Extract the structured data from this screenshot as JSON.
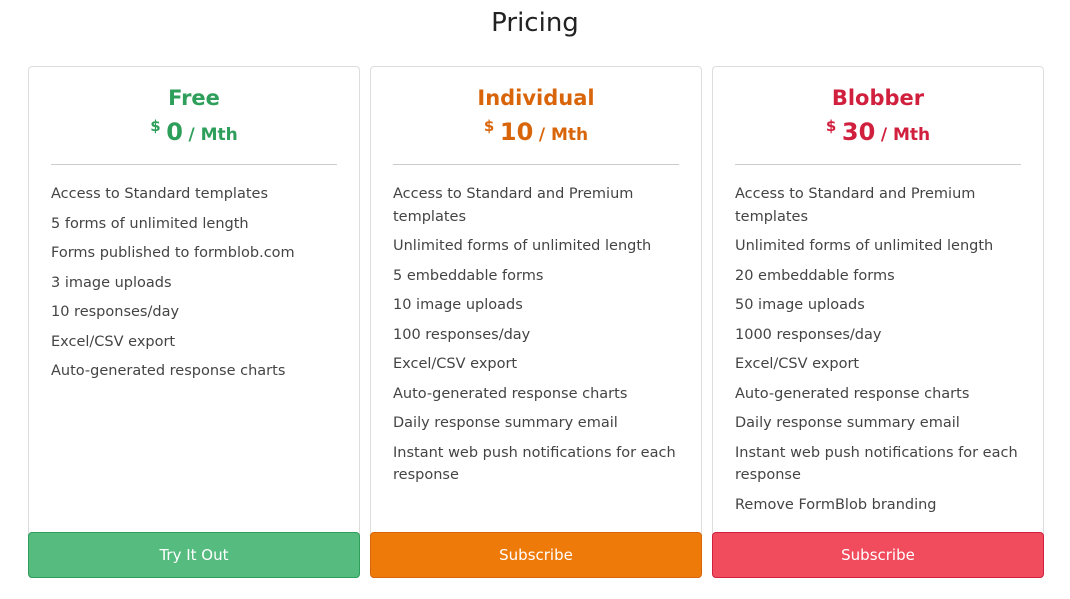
{
  "title": "Pricing",
  "plans": [
    {
      "name": "Free",
      "currency": "$",
      "amount": "0",
      "period": "/ Mth",
      "color": "#2e9e5b",
      "button": "Try It Out",
      "button_color": "#55bb7e",
      "features": [
        "Access to Standard templates",
        "5 forms of unlimited length",
        "Forms published to formblob.com",
        "3 image uploads",
        "10 responses/day",
        "Excel/CSV export",
        "Auto-generated response charts"
      ]
    },
    {
      "name": "Individual",
      "currency": "$",
      "amount": "10",
      "period": "/ Mth",
      "color": "#d9650a",
      "button": "Subscribe",
      "button_color": "#ee7a0a",
      "features": [
        "Access to Standard and Premium templates",
        "Unlimited forms of unlimited length",
        "5 embeddable forms",
        "10 image uploads",
        "100 responses/day",
        "Excel/CSV export",
        "Auto-generated response charts",
        "Daily response summary email",
        "Instant web push notifications for each response"
      ]
    },
    {
      "name": "Blobber",
      "currency": "$",
      "amount": "30",
      "period": "/ Mth",
      "color": "#d11f3e",
      "button": "Subscribe",
      "button_color": "#f14c5e",
      "features": [
        "Access to Standard and Premium templates",
        "Unlimited forms of unlimited length",
        "20 embeddable forms",
        "50 image uploads",
        "1000 responses/day",
        "Excel/CSV export",
        "Auto-generated response charts",
        "Daily response summary email",
        "Instant web push notifications for each response",
        "Remove FormBlob branding"
      ]
    }
  ]
}
